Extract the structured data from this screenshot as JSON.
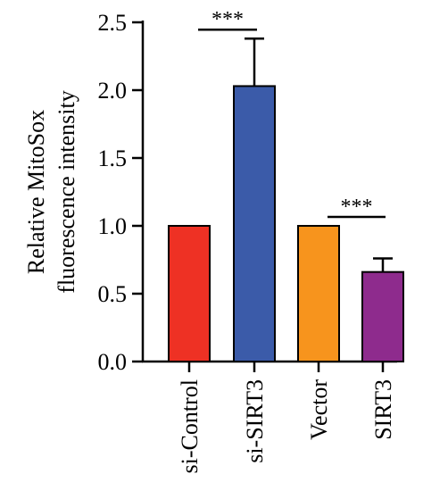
{
  "chart_data": {
    "type": "bar",
    "ylabel_lines": [
      "Relative MitoSox",
      "fluorescence intensity"
    ],
    "ylim": [
      0,
      2.5
    ],
    "yticks": [
      "0.0",
      "0.5",
      "1.0",
      "1.5",
      "2.0",
      "2.5"
    ],
    "categories": [
      "si-Control",
      "si-SIRT3",
      "Vector",
      "SIRT3"
    ],
    "values": [
      1.0,
      2.03,
      1.0,
      0.66
    ],
    "errors": [
      0,
      0.35,
      0,
      0.1
    ],
    "colors": [
      "#ee3124",
      "#3b5ba9",
      "#f7941d",
      "#8e2b8d"
    ],
    "significance": [
      {
        "from": 0,
        "to": 1,
        "label": "***"
      },
      {
        "from": 2,
        "to": 3,
        "label": "***"
      }
    ]
  }
}
